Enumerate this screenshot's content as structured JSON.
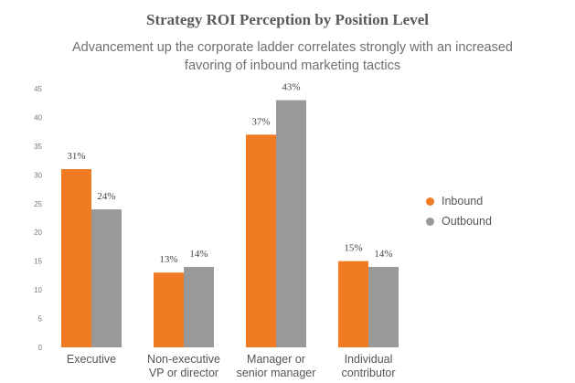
{
  "chart_data": {
    "type": "bar",
    "title": "Strategy ROI Perception by Position Level",
    "subtitle": "Advancement up the corporate ladder correlates strongly with an increased favoring of inbound marketing tactics",
    "categories": [
      [
        "Executive"
      ],
      [
        "Non-executive",
        "VP or director"
      ],
      [
        "Manager or",
        "senior manager"
      ],
      [
        "Individual",
        "contributor"
      ]
    ],
    "series": [
      {
        "name": "Inbound",
        "color": "#f07b22",
        "values": [
          31,
          13,
          37,
          15
        ]
      },
      {
        "name": "Outbound",
        "color": "#999999",
        "values": [
          24,
          14,
          43,
          14
        ]
      }
    ],
    "ylim": [
      0,
      45
    ],
    "yticks": [
      0,
      5,
      10,
      15,
      20,
      25,
      30,
      35,
      40,
      45
    ],
    "value_suffix": "%",
    "grid": false,
    "legend": "right"
  }
}
